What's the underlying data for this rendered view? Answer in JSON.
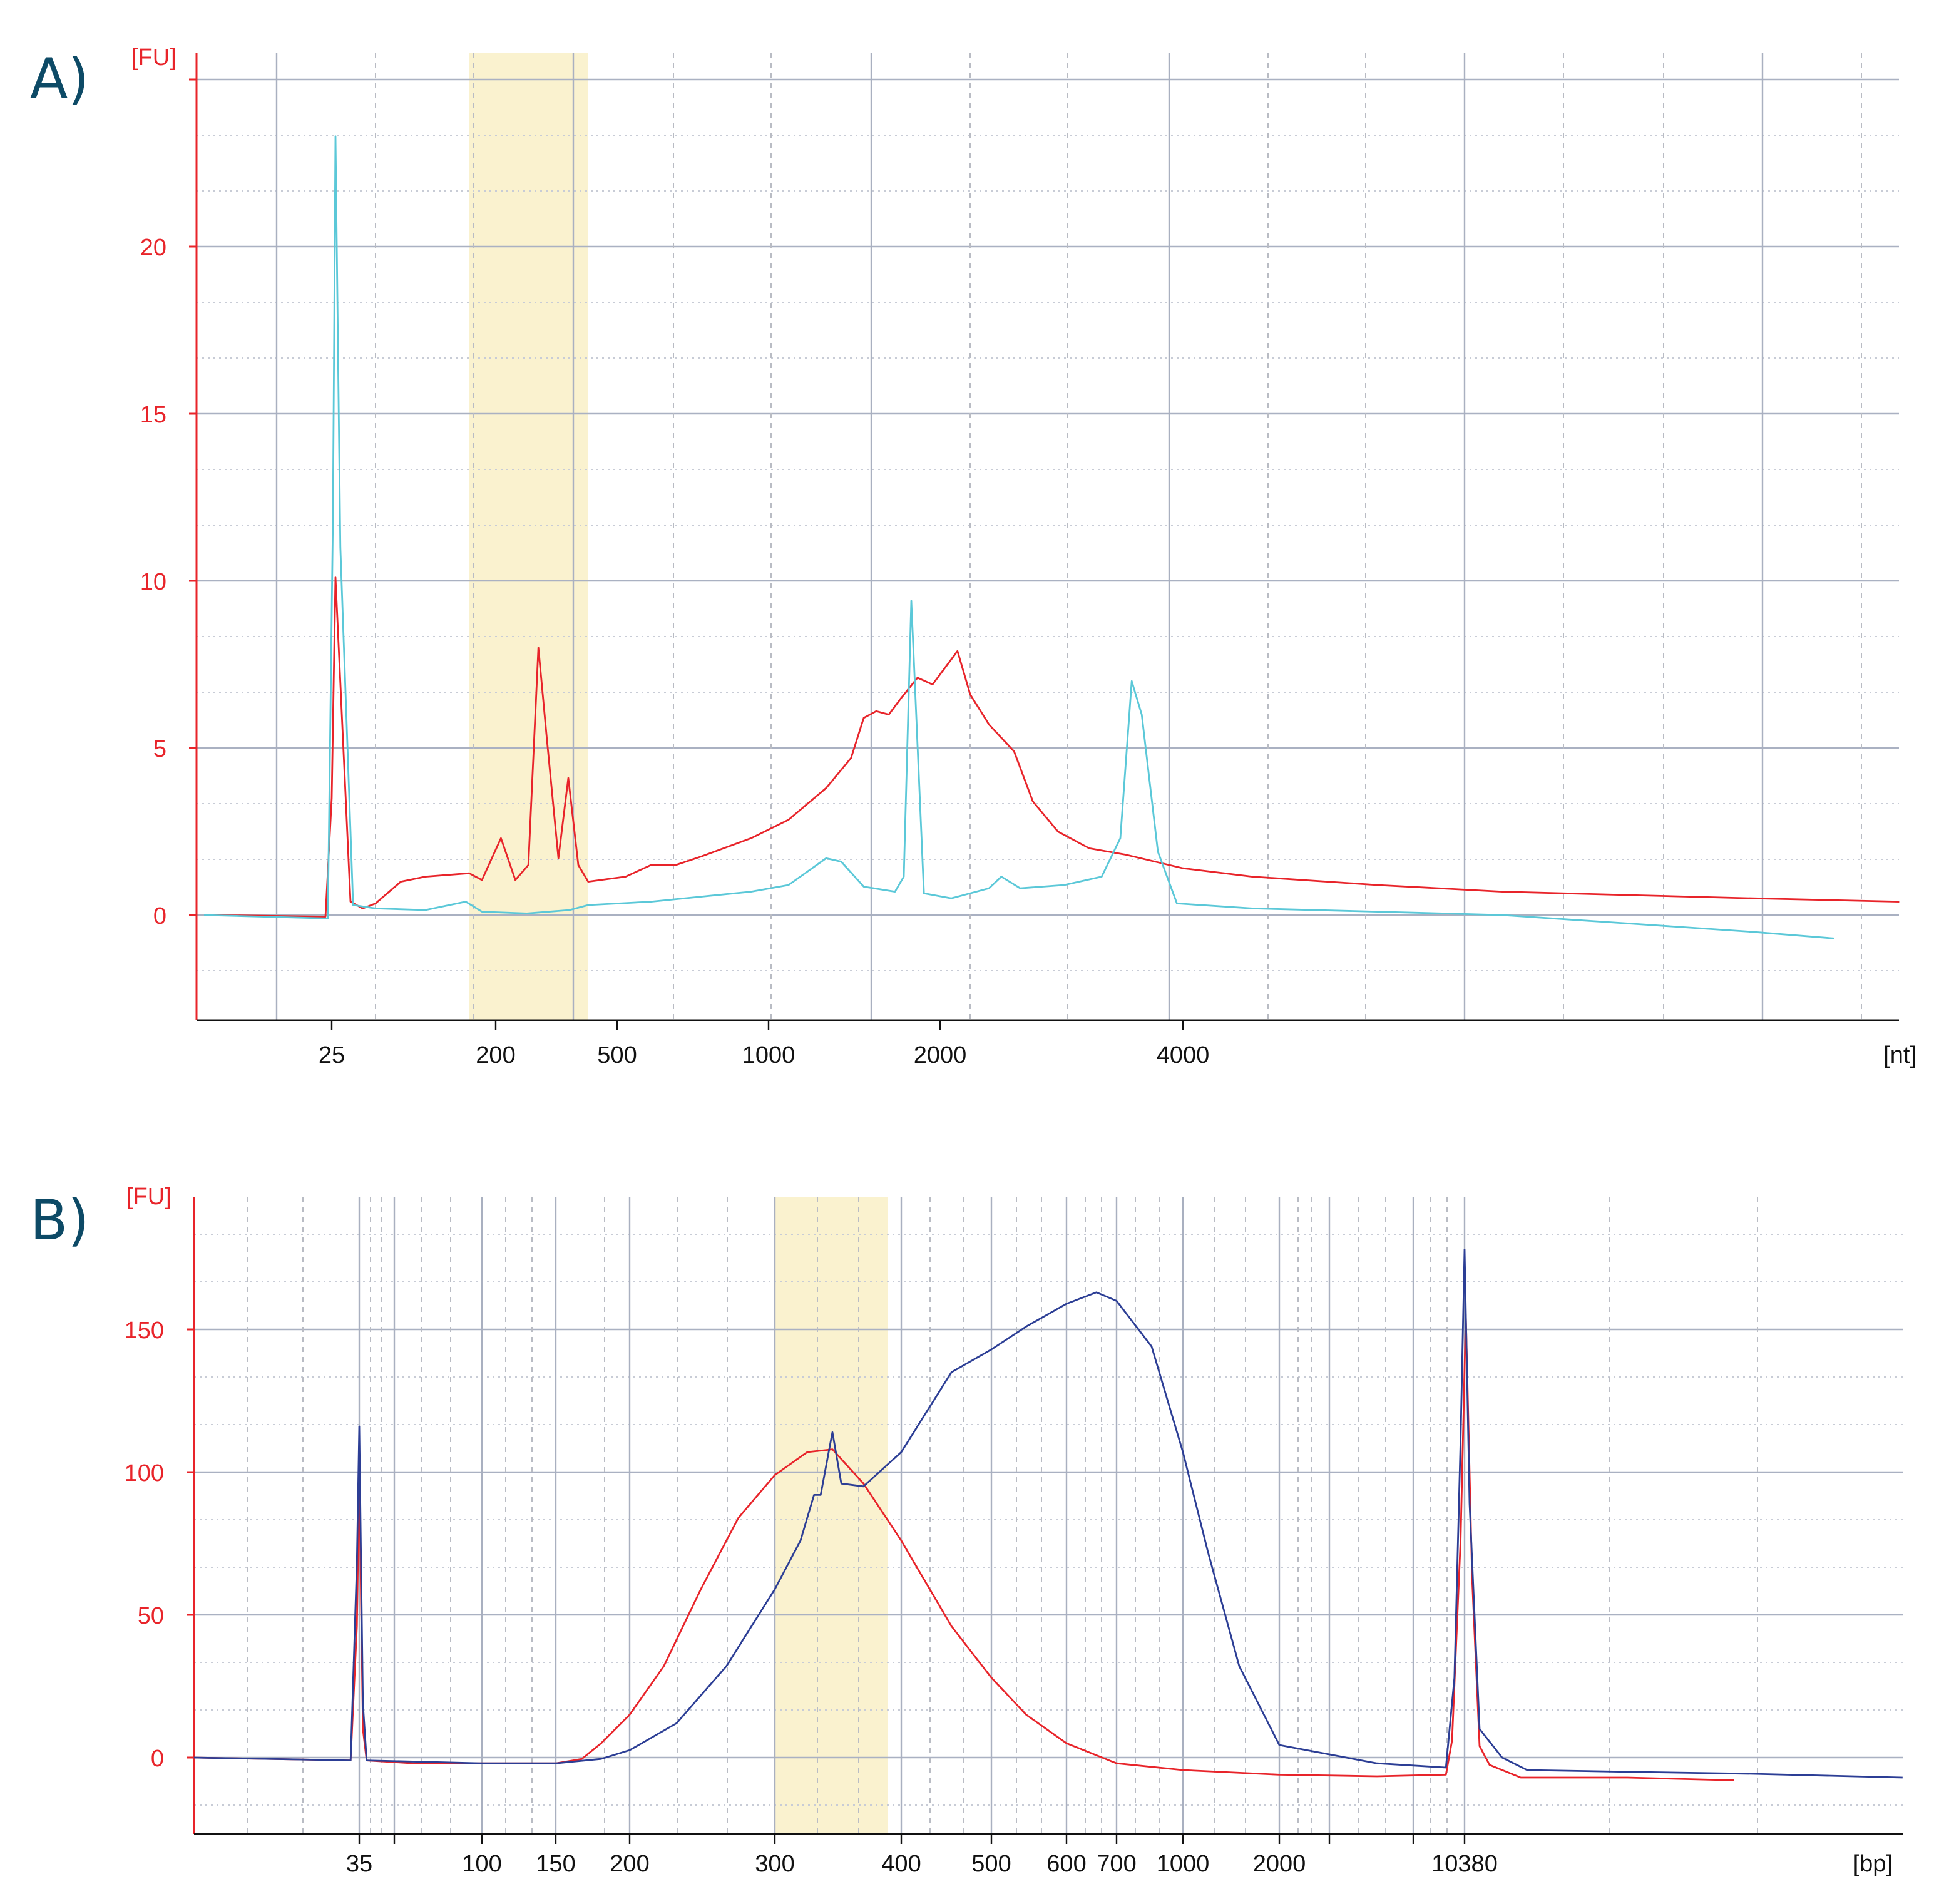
{
  "chart_data": [
    {
      "panel": "A)",
      "type": "line",
      "ylabel": "[FU]",
      "xlabel": "[nt]",
      "ylim": [
        -3.15,
        25.5
      ],
      "yticks": [
        0,
        5,
        10,
        15,
        20
      ],
      "xticks": [
        25,
        200,
        500,
        1000,
        2000,
        4000
      ],
      "xscale": "log-piecewise",
      "grid": true,
      "highlight_range": [
        143,
        402
      ],
      "series": [
        {
          "name": "red trace",
          "color": "#e8242a",
          "x": [
            5.1,
            23.1,
            25,
            26.2,
            31.7,
            37,
            43.6,
            60,
            82,
            143,
            168,
            208,
            232,
            256,
            276,
            294,
            321,
            346,
            373,
            402,
            520,
            584,
            654,
            734,
            923,
            1084,
            1262,
            1396,
            1469,
            1545,
            1625,
            1710,
            1826,
            1940,
            2102,
            2180,
            2300,
            2470,
            2606,
            2800,
            3060,
            3405,
            4000,
            4875,
            6970,
            9950,
            14230,
            20300,
            30900
          ],
          "y": [
            0,
            -0.05,
            3.5,
            10.1,
            0.4,
            0.2,
            0.35,
            1.0,
            1.15,
            1.25,
            1.05,
            2.3,
            1.05,
            1.5,
            8.0,
            5.3,
            1.7,
            4.1,
            1.5,
            1.0,
            1.15,
            1.5,
            1.5,
            1.75,
            2.3,
            2.85,
            3.8,
            4.7,
            5.9,
            6.1,
            6.0,
            6.5,
            7.1,
            6.9,
            7.9,
            6.6,
            5.7,
            4.9,
            3.4,
            2.5,
            2.0,
            1.8,
            1.4,
            1.15,
            0.9,
            0.7,
            0.6,
            0.5,
            0.4
          ]
        },
        {
          "name": "cyan trace",
          "color": "#5bc8d8",
          "x": [
            4.95,
            23.8,
            25.4,
            26.2,
            27.9,
            32.8,
            43.6,
            82,
            136.7,
            168,
            253,
            349,
            402,
            584,
            734,
            923,
            1084,
            1262,
            1341,
            1469,
            1667,
            1727,
            1780,
            1874,
            2065,
            2300,
            2382,
            2514,
            2850,
            3172,
            3346,
            3456,
            3556,
            3724,
            3932,
            4875,
            6970,
            9950,
            14230,
            20300,
            25680
          ],
          "y": [
            0,
            -0.1,
            12,
            23.3,
            11,
            0.3,
            0.2,
            0.15,
            0.4,
            0.1,
            0.05,
            0.15,
            0.3,
            0.4,
            0.55,
            0.7,
            0.9,
            1.7,
            1.6,
            0.85,
            0.7,
            1.15,
            9.4,
            0.65,
            0.5,
            0.8,
            1.15,
            0.8,
            0.9,
            1.15,
            2.3,
            7.0,
            6.0,
            1.9,
            0.35,
            0.2,
            0.1,
            0,
            -0.25,
            -0.5,
            -0.7
          ]
        }
      ]
    },
    {
      "panel": "B)",
      "type": "line",
      "ylabel": "[FU]",
      "xlabel": "[bp]",
      "ylim": [
        -27,
        196
      ],
      "yticks": [
        0,
        50,
        100,
        150
      ],
      "xticks": [
        35,
        100,
        150,
        200,
        300,
        400,
        500,
        600,
        700,
        1000,
        2000,
        10380
      ],
      "xscale": "log-piecewise",
      "grid": true,
      "highlight_range": [
        300,
        388
      ],
      "series": [
        {
          "name": "red trace",
          "color": "#e8242a",
          "x": [
            8.5,
            32.5,
            34.3,
            35,
            36.1,
            37.3,
            55.5,
            100,
            150,
            166,
            179,
            200,
            220,
            244,
            271,
            300,
            323,
            342,
            367,
            400,
            453,
            500,
            544,
            600,
            700,
            1000,
            2000,
            4765,
            8790,
            9290,
            10020,
            10496,
            11100,
            11860,
            12970,
            17110,
            44100,
            113600
          ],
          "y": [
            0,
            -1,
            46,
            100,
            10,
            -1,
            -2,
            -2,
            -2,
            -0.5,
            5,
            15,
            32,
            59,
            84,
            99,
            107,
            108,
            96,
            76,
            46,
            28,
            15,
            5,
            -2,
            -4.4,
            -6,
            -6.6,
            -6,
            6,
            76,
            155,
            63,
            4,
            -2.6,
            -7,
            -7,
            -8
          ]
        },
        {
          "name": "blue trace",
          "color": "#2c3e95",
          "x": [
            8.5,
            32.5,
            34.3,
            35,
            36.1,
            37.3,
            100,
            150,
            179,
            200,
            228,
            262,
            300,
            318,
            328,
            333,
            342,
            349,
            367,
            400,
            453,
            500,
            544,
            600,
            658,
            700,
            845,
            1000,
            1197,
            1500,
            2000,
            4765,
            8790,
            9490,
            10020,
            10380,
            10850,
            11860,
            14490,
            18110,
            44100,
            134000,
            509600
          ],
          "y": [
            0,
            -1,
            68,
            116,
            19,
            -1,
            -2,
            -2,
            -0.5,
            2.6,
            12,
            32,
            59,
            76,
            92,
            92,
            114,
            96,
            95,
            107,
            135,
            143,
            151,
            159,
            163,
            160,
            144,
            107,
            72,
            32,
            4.4,
            -2,
            -3.5,
            28,
            111,
            178,
            89,
            10,
            0,
            -4.4,
            -5,
            -5.7,
            -7
          ]
        }
      ]
    }
  ]
}
